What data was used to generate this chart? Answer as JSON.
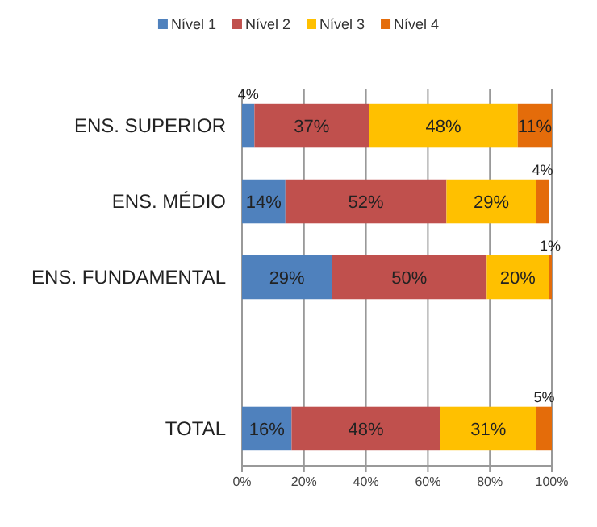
{
  "chart_data": {
    "type": "bar",
    "orientation": "horizontal",
    "stacked": true,
    "categories": [
      "ENS. SUPERIOR",
      "ENS. MÉDIO",
      "ENS. FUNDAMENTAL",
      null,
      "TOTAL"
    ],
    "series": [
      {
        "name": "Nível 1",
        "color": "#4f81bd",
        "values": [
          4,
          14,
          29,
          null,
          16
        ],
        "value_labels": [
          "4%",
          "14%",
          "29%",
          null,
          "16%"
        ]
      },
      {
        "name": "Nível 2",
        "color": "#c0504d",
        "values": [
          37,
          52,
          50,
          null,
          48
        ],
        "value_labels": [
          "37%",
          "52%",
          "50%",
          null,
          "48%"
        ]
      },
      {
        "name": "Nível 3",
        "color": "#ffc000",
        "values": [
          48,
          29,
          20,
          null,
          31
        ],
        "value_labels": [
          "48%",
          "29%",
          "20%",
          null,
          "31%"
        ]
      },
      {
        "name": "Nível 4",
        "color": "#e46c0a",
        "values": [
          11,
          4,
          1,
          null,
          5
        ],
        "value_labels": [
          "11%",
          "4%",
          "1%",
          null,
          "5%"
        ]
      }
    ],
    "xlim": [
      0,
      100
    ],
    "xticks": [
      {
        "value": 0,
        "label": "0%"
      },
      {
        "value": 20,
        "label": "20%"
      },
      {
        "value": 40,
        "label": "40%"
      },
      {
        "value": 60,
        "label": "60%"
      },
      {
        "value": 80,
        "label": "80%"
      },
      {
        "value": 100,
        "label": "100%"
      }
    ],
    "grid": "x",
    "legend": "top"
  }
}
